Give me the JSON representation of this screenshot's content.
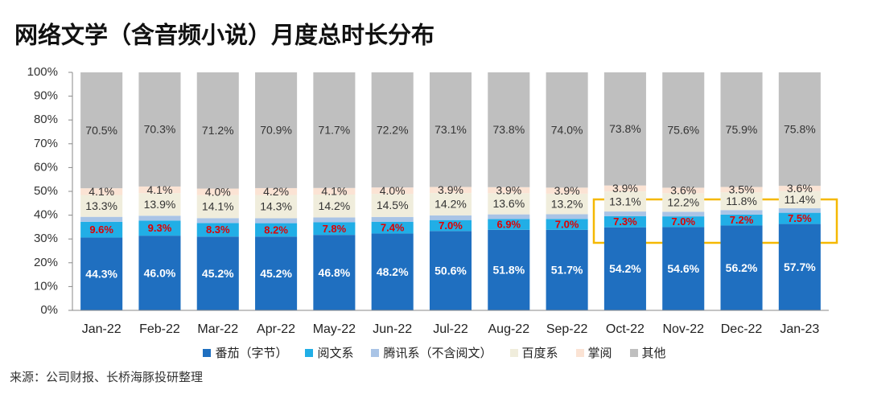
{
  "chart_data": {
    "type": "bar",
    "stacked": "percent",
    "title": "网络文学（含音频小说）月度总时长分布",
    "source": "来源：公司财报、长桥海豚投研整理",
    "categories": [
      "Jan-22",
      "Feb-22",
      "Mar-22",
      "Apr-22",
      "May-22",
      "Jun-22",
      "Jul-22",
      "Aug-22",
      "Sep-22",
      "Oct-22",
      "Nov-22",
      "Dec-22",
      "Jan-23"
    ],
    "ylim": [
      0,
      100
    ],
    "yticks": [
      {
        "value": 0,
        "label": "0%"
      },
      {
        "value": 10,
        "label": "10%"
      },
      {
        "value": 20,
        "label": "20%"
      },
      {
        "value": 30,
        "label": "30%"
      },
      {
        "value": 40,
        "label": "40%"
      },
      {
        "value": 50,
        "label": "50%"
      },
      {
        "value": 60,
        "label": "60%"
      },
      {
        "value": 70,
        "label": "70%"
      },
      {
        "value": 80,
        "label": "80%"
      },
      {
        "value": 90,
        "label": "90%"
      },
      {
        "value": 100,
        "label": "100%"
      }
    ],
    "series": [
      {
        "name": "番茄（字节）",
        "color": "#1f6fc0",
        "label_color": "#ffffff",
        "values": [
          44.3,
          46.0,
          45.2,
          45.2,
          46.8,
          48.2,
          50.6,
          51.8,
          51.7,
          54.2,
          54.6,
          56.2,
          57.7
        ],
        "value_labels": [
          "44.3%",
          "46.0%",
          "45.2%",
          "45.2%",
          "46.8%",
          "48.2%",
          "50.6%",
          "51.8%",
          "51.7%",
          "54.2%",
          "54.6%",
          "56.2%",
          "57.7%"
        ]
      },
      {
        "name": "阅文系",
        "color": "#21aee6",
        "label_color": "#e00000",
        "values": [
          9.6,
          9.3,
          8.3,
          8.2,
          7.8,
          7.4,
          7.0,
          6.9,
          7.0,
          7.3,
          7.0,
          7.2,
          7.5
        ],
        "value_labels": [
          "9.6%",
          "9.3%",
          "8.3%",
          "8.2%",
          "7.8%",
          "7.4%",
          "7.0%",
          "6.9%",
          "7.0%",
          "7.3%",
          "7.0%",
          "7.2%",
          "7.5%"
        ]
      },
      {
        "name": "腾讯系（不含阅文）",
        "color": "#a9c4e6",
        "values": [
          3,
          3,
          3,
          3,
          3,
          3,
          3,
          3,
          3,
          3,
          3,
          3,
          3
        ]
      },
      {
        "name": "百度系",
        "color": "#f0eddc",
        "label_color": "#333333",
        "values": [
          13.3,
          13.9,
          14.1,
          14.3,
          14.2,
          14.5,
          14.2,
          13.6,
          13.2,
          13.1,
          12.2,
          11.8,
          11.4
        ],
        "value_labels": [
          "13.3%",
          "13.9%",
          "14.1%",
          "14.3%",
          "14.2%",
          "14.5%",
          "14.2%",
          "13.6%",
          "13.2%",
          "13.1%",
          "12.2%",
          "11.8%",
          "11.4%"
        ]
      },
      {
        "name": "掌阅",
        "color": "#fbe3d4",
        "label_color": "#333333",
        "values": [
          4.1,
          4.1,
          4.0,
          4.2,
          4.1,
          4.0,
          3.9,
          3.9,
          3.9,
          3.9,
          3.6,
          3.5,
          3.6
        ],
        "value_labels": [
          "4.1%",
          "4.1%",
          "4.0%",
          "4.2%",
          "4.1%",
          "4.0%",
          "3.9%",
          "3.9%",
          "3.9%",
          "3.9%",
          "3.6%",
          "3.5%",
          "3.6%"
        ]
      },
      {
        "name": "其他",
        "color": "#bfbfbf",
        "label_color": "#333333",
        "values": [
          70.5,
          70.3,
          71.2,
          70.9,
          71.7,
          72.2,
          73.1,
          73.8,
          74.0,
          73.8,
          75.6,
          75.9,
          75.8
        ],
        "value_labels": [
          "70.5%",
          "70.3%",
          "71.2%",
          "70.9%",
          "71.7%",
          "72.2%",
          "73.1%",
          "73.8%",
          "74.0%",
          "73.8%",
          "75.6%",
          "75.9%",
          "75.8%"
        ]
      }
    ]
  }
}
